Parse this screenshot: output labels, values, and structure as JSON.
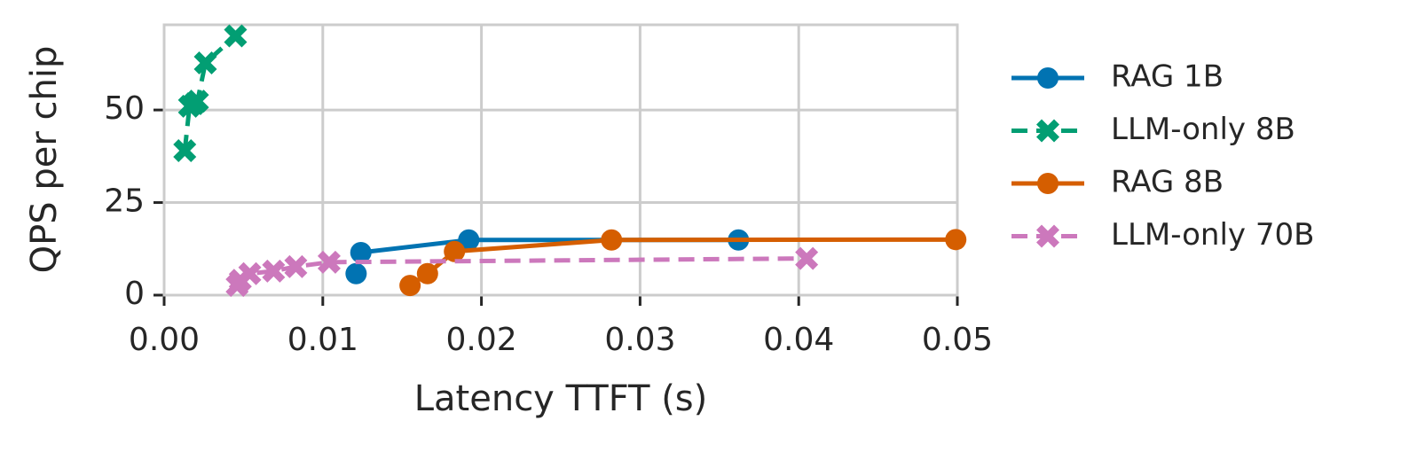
{
  "chart_data": {
    "type": "line",
    "xlabel": "Latency TTFT (s)",
    "ylabel": "QPS per chip",
    "xlim": [
      0,
      0.05
    ],
    "ylim": [
      0,
      73
    ],
    "xticks": [
      {
        "value": 0,
        "label": "0.00"
      },
      0.01,
      0.02,
      0.03,
      0.04,
      0.05
    ],
    "yticks": [
      0,
      25,
      50
    ],
    "grid": true,
    "legend": "outside right",
    "series": [
      {
        "name": "RAG 1B",
        "color": "#0173b2",
        "marker": "o",
        "dashed": false,
        "x": [
          0.0121,
          0.0124,
          0.0192,
          0.0362
        ],
        "values": [
          5.8,
          11.5,
          14.9,
          14.9
        ]
      },
      {
        "name": "LLM-only 8B",
        "color": "#029e73",
        "marker": "X",
        "dashed": true,
        "x": [
          0.0013,
          0.0016,
          0.0019,
          0.0021,
          0.0026,
          0.0045
        ],
        "values": [
          39,
          51,
          51.7,
          52.4,
          62.7,
          70
        ]
      },
      {
        "name": "RAG 8B",
        "color": "#d55e00",
        "marker": "o",
        "dashed": false,
        "x": [
          0.0155,
          0.0166,
          0.0183,
          0.0282,
          0.0499
        ],
        "values": [
          2.6,
          5.8,
          11.8,
          14.9,
          15
        ]
      },
      {
        "name": "LLM-only 70B",
        "color": "#cc78bc",
        "marker": "X",
        "dashed": true,
        "x": [
          0.0046,
          0.0048,
          0.0054,
          0.0069,
          0.0083,
          0.0104,
          0.0405
        ],
        "values": [
          2.6,
          4,
          5.8,
          6.5,
          7.7,
          8.9,
          9.9
        ]
      }
    ]
  }
}
